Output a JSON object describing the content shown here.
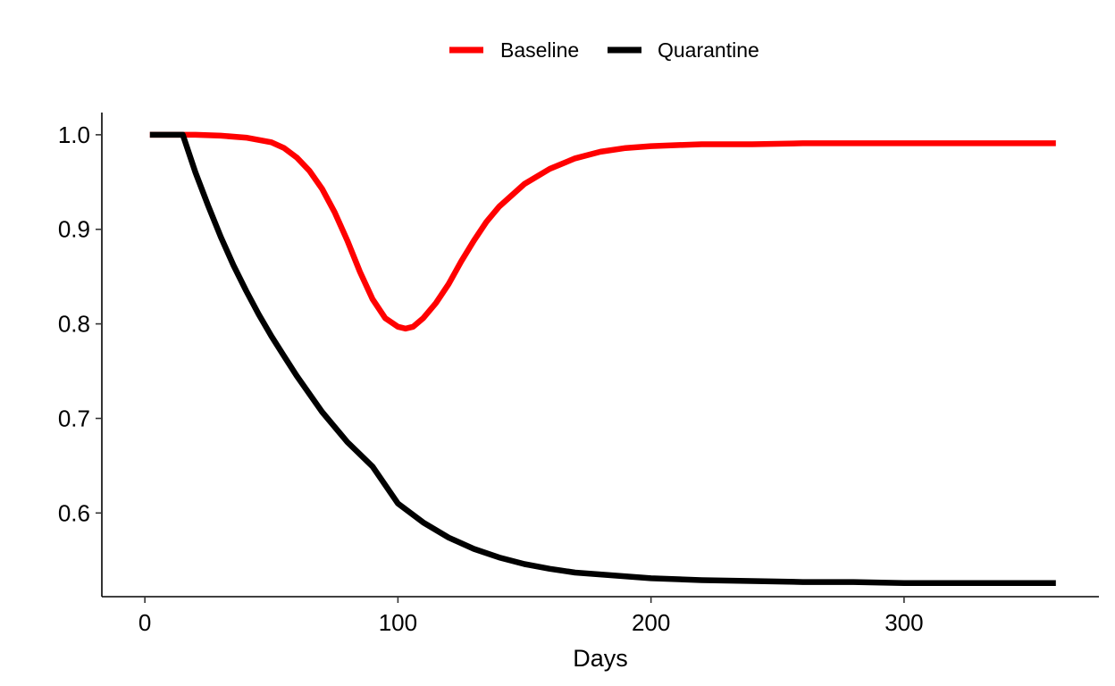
{
  "chart_data": {
    "type": "line",
    "title": "",
    "xlabel": "Days",
    "ylabel": "",
    "xlim": [
      -17,
      377
    ],
    "ylim": [
      0.5115,
      1.0235
    ],
    "x_ticks": [
      0,
      100,
      200,
      300
    ],
    "x_tick_labels": [
      "0",
      "100",
      "200",
      "300"
    ],
    "y_ticks": [
      0.6,
      0.7,
      0.8,
      0.9,
      1.0
    ],
    "y_tick_labels": [
      "0.6",
      "0.7",
      "0.8",
      "0.9",
      "1.0"
    ],
    "grid": false,
    "legend_position": "top",
    "series": [
      {
        "name": "Baseline",
        "color": "#FF0000",
        "x": [
          2,
          15,
          20,
          30,
          40,
          50,
          55,
          60,
          65,
          70,
          75,
          80,
          85,
          90,
          95,
          100,
          103,
          106,
          110,
          115,
          120,
          125,
          130,
          135,
          140,
          150,
          160,
          170,
          180,
          190,
          200,
          210,
          220,
          240,
          260,
          280,
          300,
          330,
          360
        ],
        "y": [
          1.0,
          1.0,
          1.0,
          0.999,
          0.997,
          0.992,
          0.986,
          0.976,
          0.962,
          0.943,
          0.918,
          0.888,
          0.855,
          0.826,
          0.806,
          0.797,
          0.795,
          0.797,
          0.806,
          0.822,
          0.842,
          0.866,
          0.888,
          0.908,
          0.924,
          0.948,
          0.964,
          0.975,
          0.982,
          0.986,
          0.988,
          0.989,
          0.99,
          0.99,
          0.991,
          0.991,
          0.991,
          0.991,
          0.991
        ]
      },
      {
        "name": "Quarantine",
        "color": "#000000",
        "x": [
          2,
          10,
          15,
          20,
          25,
          30,
          35,
          40,
          45,
          50,
          55,
          60,
          70,
          80,
          90,
          100,
          110,
          120,
          130,
          140,
          150,
          160,
          170,
          180,
          200,
          220,
          240,
          260,
          280,
          300,
          330,
          360
        ],
        "y": [
          1.0,
          1.0,
          1.0,
          0.96,
          0.925,
          0.892,
          0.862,
          0.835,
          0.81,
          0.787,
          0.766,
          0.745,
          0.707,
          0.675,
          0.649,
          0.61,
          0.59,
          0.574,
          0.562,
          0.553,
          0.546,
          0.541,
          0.537,
          0.535,
          0.531,
          0.529,
          0.528,
          0.527,
          0.527,
          0.526,
          0.526,
          0.526
        ]
      }
    ]
  }
}
